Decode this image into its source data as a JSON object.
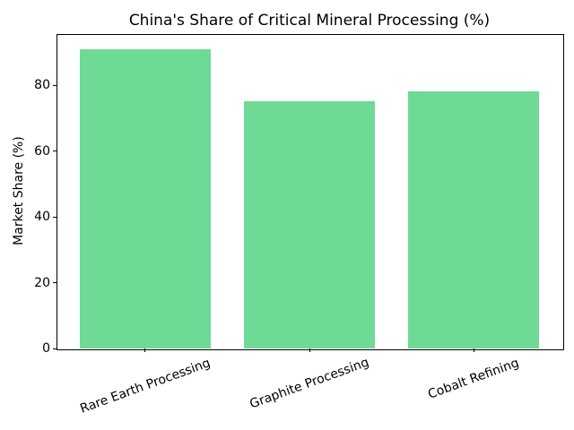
{
  "chart_data": {
    "type": "bar",
    "title": "China's Share of Critical Mineral Processing (%)",
    "categories": [
      "Rare Earth Processing",
      "Graphite Processing",
      "Cobalt Refining"
    ],
    "values": [
      91,
      75,
      78
    ],
    "xlabel": "",
    "ylabel": "Market Share (%)",
    "ylim": [
      0,
      95.55
    ],
    "yticks": [
      0,
      20,
      40,
      60,
      80
    ],
    "x_tick_rotation_deg": 20,
    "bar_color": "#6eda96",
    "axis_color": "#000000",
    "background_color": "#ffffff",
    "grid": false,
    "legend_position": "none"
  }
}
